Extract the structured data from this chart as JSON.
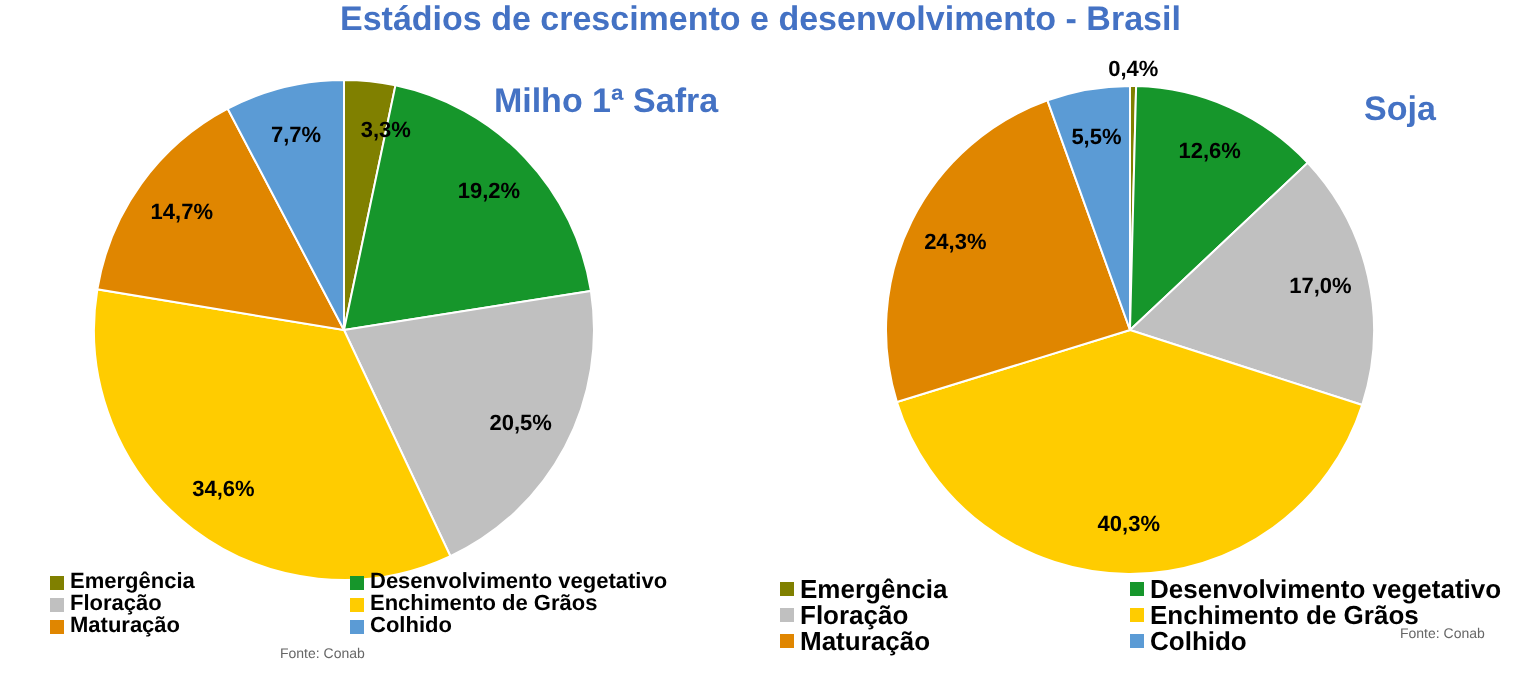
{
  "chart_data": [
    {
      "type": "pie",
      "title": "Estádios de crescimento e desenvolvimento - Brasil",
      "subtitle": "Milho 1ª Safra",
      "categories": [
        "Emergência",
        "Desenvolvimento vegetativo",
        "Floração",
        "Enchimento de Grãos",
        "Maturação",
        "Colhido"
      ],
      "values": [
        3.3,
        19.2,
        20.5,
        34.6,
        14.7,
        7.7
      ],
      "value_labels": [
        "3,3%",
        "19,2%",
        "20,5%",
        "34,6%",
        "14,7%",
        "7,7%"
      ],
      "colors": [
        "#808000",
        "#16962b",
        "#c0c0c0",
        "#ffcc00",
        "#e08600",
        "#5b9bd5"
      ],
      "legend": "bottom",
      "annotations": [
        "Fonte: Conab"
      ]
    },
    {
      "type": "pie",
      "title": "Soja",
      "categories": [
        "Emergência",
        "Desenvolvimento vegetativo",
        "Floração",
        "Enchimento de Grãos",
        "Maturação",
        "Colhido"
      ],
      "values": [
        0.4,
        12.6,
        17.0,
        40.3,
        24.3,
        5.5
      ],
      "value_labels": [
        "0,4%",
        "12,6%",
        "17,0%",
        "40,3%",
        "24,3%",
        "5,5%"
      ],
      "colors": [
        "#808000",
        "#16962b",
        "#c0c0c0",
        "#ffcc00",
        "#e08600",
        "#5b9bd5"
      ],
      "legend": "bottom",
      "annotations": [
        "Fonte: Conab"
      ]
    }
  ]
}
